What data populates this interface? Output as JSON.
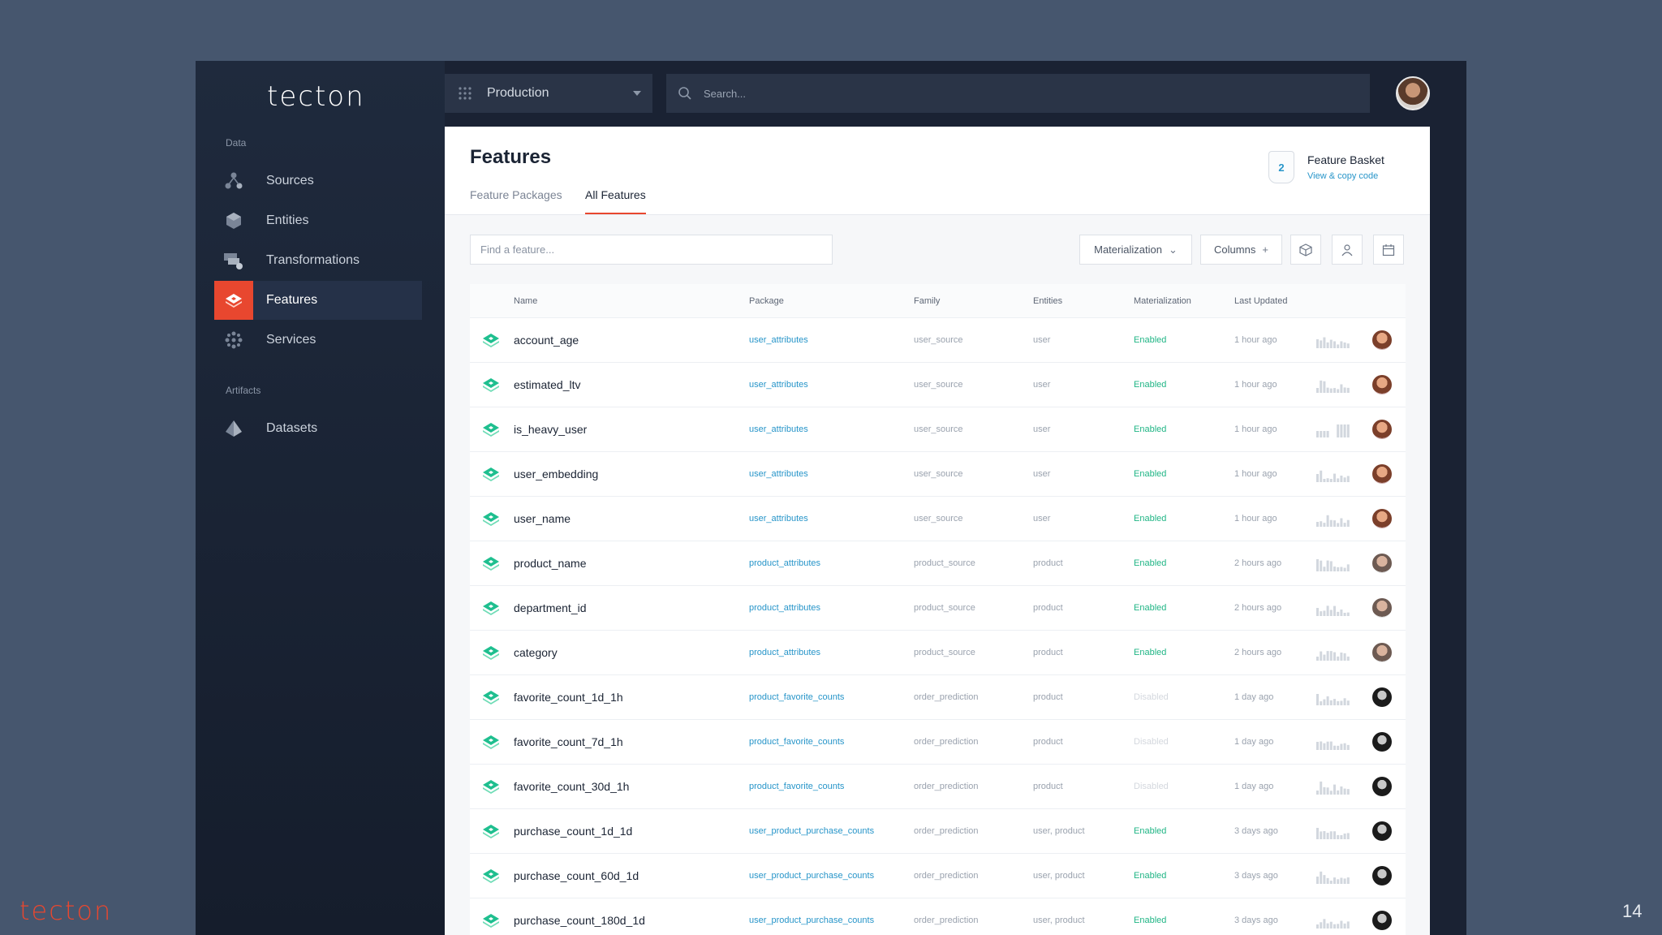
{
  "brand": "tecton",
  "slide_number": "14",
  "sidebar": {
    "section_data": "Data",
    "section_artifacts": "Artifacts",
    "items": [
      {
        "label": "Sources"
      },
      {
        "label": "Entities"
      },
      {
        "label": "Transformations"
      },
      {
        "label": "Features"
      },
      {
        "label": "Services"
      }
    ],
    "artifact_items": [
      {
        "label": "Datasets"
      }
    ]
  },
  "topbar": {
    "workspace": "Production",
    "search_placeholder": "Search..."
  },
  "page": {
    "title": "Features",
    "tabs": [
      "Feature Packages",
      "All Features"
    ],
    "active_tab": "All Features"
  },
  "basket": {
    "count": "2",
    "title": "Feature Basket",
    "link": "View & copy code"
  },
  "toolbar": {
    "find_placeholder": "Find a feature...",
    "materialization": "Materialization",
    "columns": "Columns"
  },
  "table": {
    "headers": {
      "name": "Name",
      "package": "Package",
      "family": "Family",
      "entities": "Entities",
      "materialization": "Materialization",
      "last_updated": "Last Updated"
    },
    "rows": [
      {
        "name": "account_age",
        "package": "user_attributes",
        "family": "user_source",
        "entities": "user",
        "materialization": "Enabled",
        "updated": "1 hour ago"
      },
      {
        "name": "estimated_ltv",
        "package": "user_attributes",
        "family": "user_source",
        "entities": "user",
        "materialization": "Enabled",
        "updated": "1 hour ago"
      },
      {
        "name": "is_heavy_user",
        "package": "user_attributes",
        "family": "user_source",
        "entities": "user",
        "materialization": "Enabled",
        "updated": "1 hour ago"
      },
      {
        "name": "user_embedding",
        "package": "user_attributes",
        "family": "user_source",
        "entities": "user",
        "materialization": "Enabled",
        "updated": "1 hour ago"
      },
      {
        "name": "user_name",
        "package": "user_attributes",
        "family": "user_source",
        "entities": "user",
        "materialization": "Enabled",
        "updated": "1 hour ago"
      },
      {
        "name": "product_name",
        "package": "product_attributes",
        "family": "product_source",
        "entities": "product",
        "materialization": "Enabled",
        "updated": "2 hours ago"
      },
      {
        "name": "department_id",
        "package": "product_attributes",
        "family": "product_source",
        "entities": "product",
        "materialization": "Enabled",
        "updated": "2 hours ago"
      },
      {
        "name": "category",
        "package": "product_attributes",
        "family": "product_source",
        "entities": "product",
        "materialization": "Enabled",
        "updated": "2 hours ago"
      },
      {
        "name": "favorite_count_1d_1h",
        "package": "product_favorite_counts",
        "family": "order_prediction",
        "entities": "product",
        "materialization": "Disabled",
        "updated": "1 day ago"
      },
      {
        "name": "favorite_count_7d_1h",
        "package": "product_favorite_counts",
        "family": "order_prediction",
        "entities": "product",
        "materialization": "Disabled",
        "updated": "1 day ago"
      },
      {
        "name": "favorite_count_30d_1h",
        "package": "product_favorite_counts",
        "family": "order_prediction",
        "entities": "product",
        "materialization": "Disabled",
        "updated": "1 day ago"
      },
      {
        "name": "purchase_count_1d_1d",
        "package": "user_product_purchase_counts",
        "family": "order_prediction",
        "entities": "user, product",
        "materialization": "Enabled",
        "updated": "3 days ago"
      },
      {
        "name": "purchase_count_60d_1d",
        "package": "user_product_purchase_counts",
        "family": "order_prediction",
        "entities": "user, product",
        "materialization": "Enabled",
        "updated": "3 days ago"
      },
      {
        "name": "purchase_count_180d_1d",
        "package": "user_product_purchase_counts",
        "family": "order_prediction",
        "entities": "user, product",
        "materialization": "Enabled",
        "updated": "3 days ago"
      }
    ]
  },
  "colors": {
    "accent": "#e8472f",
    "link": "#2795c9",
    "enabled": "#20b585",
    "disabled": "#d4d8de",
    "feature_icon": "#1fbf8f"
  }
}
